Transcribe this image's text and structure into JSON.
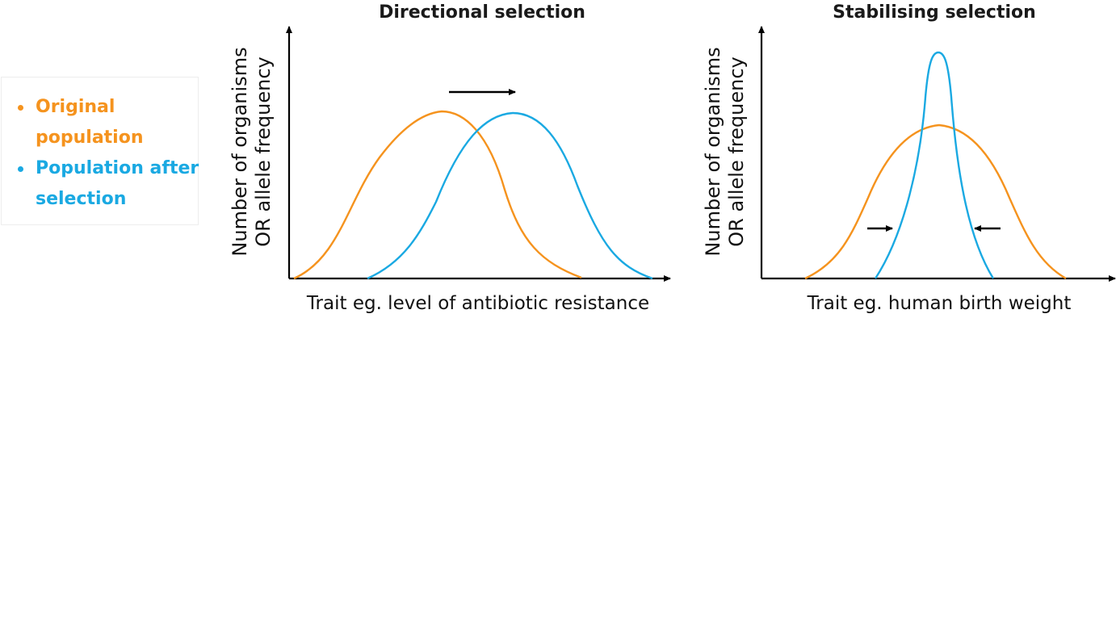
{
  "legend": {
    "original": {
      "label": "Original population",
      "color": "#f5931e"
    },
    "after": {
      "label": "Population after selection",
      "color": "#1aa9e2"
    }
  },
  "directional": {
    "title": "Directional selection",
    "ylabel_line1": "Number of organisms",
    "ylabel_line2": "OR allele frequency",
    "xlabel": "Trait eg. level of antibiotic resistance",
    "shift": "right"
  },
  "stabilising": {
    "title": "Stabilising selection",
    "ylabel_line1": "Number of organisms",
    "ylabel_line2": "OR allele frequency",
    "xlabel": "Trait eg. human birth weight",
    "shift": "inward"
  },
  "colors": {
    "axis": "#000000",
    "original": "#f5931e",
    "after": "#1aa9e2"
  }
}
